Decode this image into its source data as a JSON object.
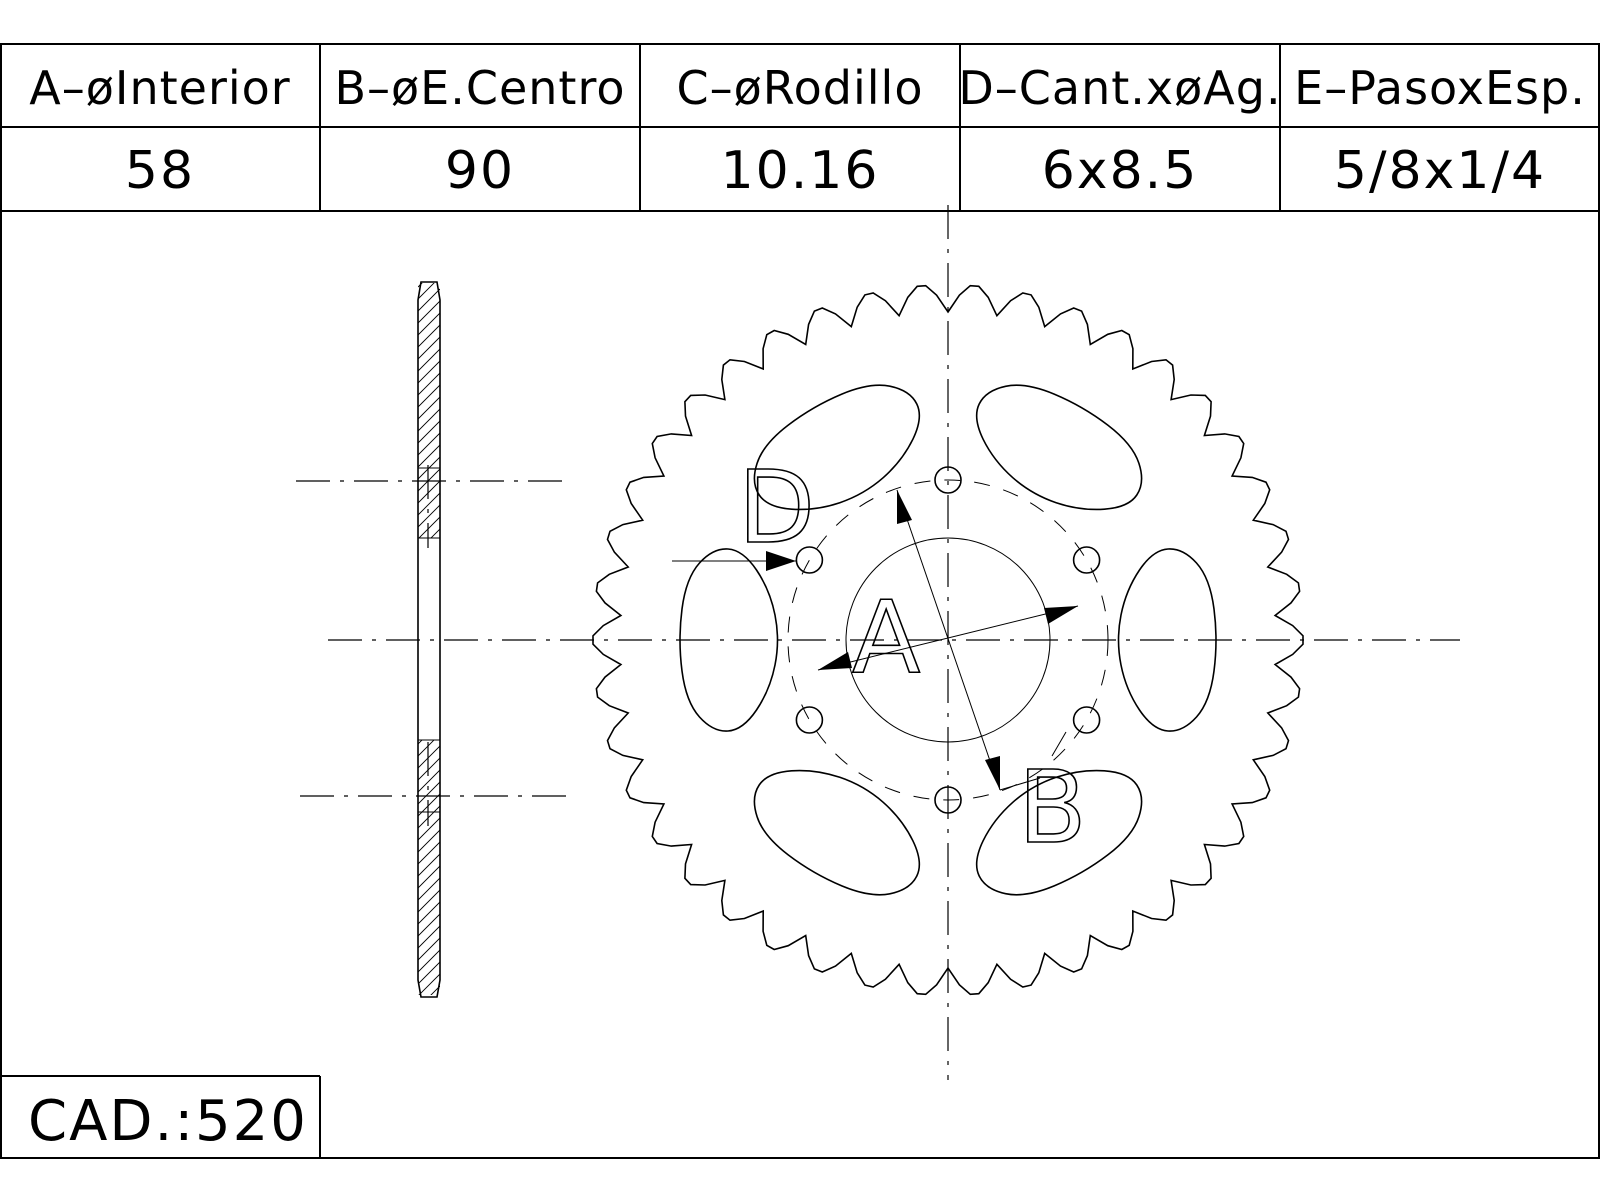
{
  "spec_table": {
    "headers": [
      "A–øInterior",
      "B–øE.Centro",
      "C–øRodillo",
      "D–Cant.xøAg.",
      "E–PasoxEsp."
    ],
    "values": [
      "58",
      "90",
      "10.16",
      "6x8.5",
      "5/8x1/4"
    ]
  },
  "labels": {
    "a": "A",
    "b": "B",
    "d": "D"
  },
  "footer": {
    "cad_label": "CAD.:",
    "cad_value": "520"
  },
  "sprocket": {
    "teeth": 42,
    "bolt_holes": 6,
    "lightening_holes": 6
  }
}
